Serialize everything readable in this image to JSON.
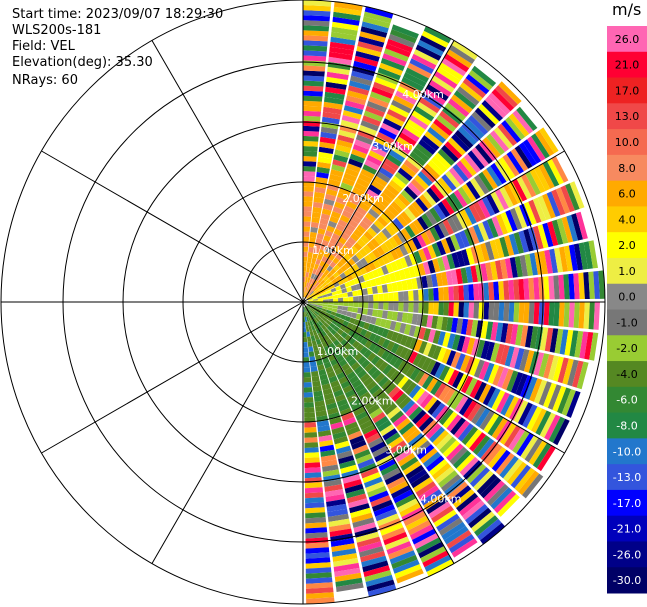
{
  "header": {
    "start_time": "Start time: 2023/09/07 18:29:30",
    "instrument": "WLS200s-181",
    "field": "Field: VEL",
    "elevation": "Elevation(deg): 35.30",
    "nrays": "NRays: 60"
  },
  "range_rings": {
    "labels": [
      "1.00km",
      "2.00km",
      "3.00km",
      "4.00km"
    ]
  },
  "colorbar": {
    "unit": "m/s",
    "entries": [
      {
        "label": "26.0",
        "color": "#ff66b3"
      },
      {
        "label": "21.0",
        "color": "#ff0033"
      },
      {
        "label": "17.0",
        "color": "#ee2222"
      },
      {
        "label": "13.0",
        "color": "#f04848"
      },
      {
        "label": "10.0",
        "color": "#f56a50"
      },
      {
        "label": "8.0",
        "color": "#f78a60"
      },
      {
        "label": "6.0",
        "color": "#ffaa00"
      },
      {
        "label": "4.0",
        "color": "#ffcc00"
      },
      {
        "label": "2.0",
        "color": "#ffff00"
      },
      {
        "label": "1.0",
        "color": "#eeee44"
      },
      {
        "label": "0.0",
        "color": "#888888"
      },
      {
        "label": "-1.0",
        "color": "#777777"
      },
      {
        "label": "-2.0",
        "color": "#99cc33"
      },
      {
        "label": "-4.0",
        "color": "#558822"
      },
      {
        "label": "-6.0",
        "color": "#338833"
      },
      {
        "label": "-8.0",
        "color": "#228844"
      },
      {
        "label": "-10.0",
        "color": "#2277cc"
      },
      {
        "label": "-13.0",
        "color": "#3355dd"
      },
      {
        "label": "-17.0",
        "color": "#0000ff"
      },
      {
        "label": "-21.0",
        "color": "#0000bb"
      },
      {
        "label": "-26.0",
        "color": "#000088"
      },
      {
        "label": "-30.0",
        "color": "#000066"
      }
    ]
  }
}
